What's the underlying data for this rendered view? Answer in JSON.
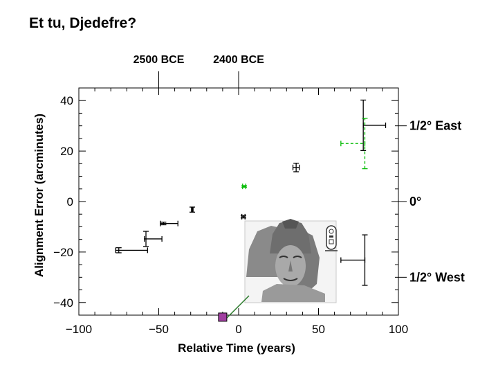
{
  "slide": {
    "title": "Et tu, Djedefre?"
  },
  "chart_data": {
    "type": "scatter",
    "title": "",
    "xlabel": "Relative Time (years)",
    "ylabel": "Alignment Error (arcminutes)",
    "xlim": [
      -100,
      100
    ],
    "ylim": [
      -45,
      45
    ],
    "x_ticks": [
      -100,
      -50,
      0,
      50,
      100
    ],
    "x_tick_labels": [
      "−100",
      "−50",
      "0",
      "50",
      "100"
    ],
    "y_ticks": [
      -40,
      -20,
      0,
      20,
      40
    ],
    "y_tick_labels": [
      "−40",
      "−20",
      "0",
      "20",
      "40"
    ],
    "grid": false,
    "top_axis": {
      "ticks": [
        {
          "x": -50,
          "label": "2500 BCE"
        },
        {
          "x": 0,
          "label": "2400 BCE"
        }
      ]
    },
    "right_axis": {
      "ticks": [
        {
          "y": 30,
          "label": "1/2° East"
        },
        {
          "y": 0,
          "label": "0°"
        },
        {
          "y": -30,
          "label": "1/2° West"
        }
      ]
    },
    "series": [
      {
        "color": "#000000",
        "points": [
          {
            "x": -75,
            "y": -19.3,
            "xerr": [
              2,
              18
            ],
            "yerr": [
              1,
              1
            ]
          },
          {
            "x": -58,
            "y": -14.8,
            "xerr": [
              1,
              10
            ],
            "yerr": [
              3,
              3
            ]
          },
          {
            "x": -47,
            "y": -8.7,
            "xerr": [
              2,
              9
            ],
            "yerr": [
              0.5,
              0.5
            ]
          },
          {
            "x": -29,
            "y": -3.2,
            "xerr": [
              0.5,
              0.5
            ],
            "yerr": [
              1,
              1
            ]
          },
          {
            "x": 3,
            "y": -6.0,
            "xerr": [
              1,
              1
            ],
            "yerr": [
              0.5,
              0.5
            ]
          },
          {
            "x": 36,
            "y": 13.5,
            "xerr": [
              2,
              2
            ],
            "yerr": [
              1.7,
              1.7
            ]
          },
          {
            "x": 78,
            "y": 30.2,
            "xerr": [
              0,
              14
            ],
            "yerr": [
              10,
              10
            ]
          },
          {
            "x": 79,
            "y": -23.2,
            "xerr": [
              15,
              0
            ],
            "yerr": [
              10,
              10
            ]
          }
        ]
      },
      {
        "color": "#00bb00",
        "dashed": true,
        "points": [
          {
            "x": 3.5,
            "y": 6.0,
            "xerr": [
              1,
              1
            ],
            "yerr": [
              0.3,
              0.3
            ]
          },
          {
            "x": 79,
            "y": 23.0,
            "xerr": [
              15,
              0
            ],
            "yerr": [
              10,
              10
            ]
          }
        ]
      }
    ],
    "annotations": [
      {
        "type": "square-marker",
        "x": -10,
        "y": -45.8,
        "color": "#a040a0"
      }
    ]
  },
  "photo": {
    "description": "Djedefre head",
    "cartouche_icon": "cartouche-icon"
  }
}
